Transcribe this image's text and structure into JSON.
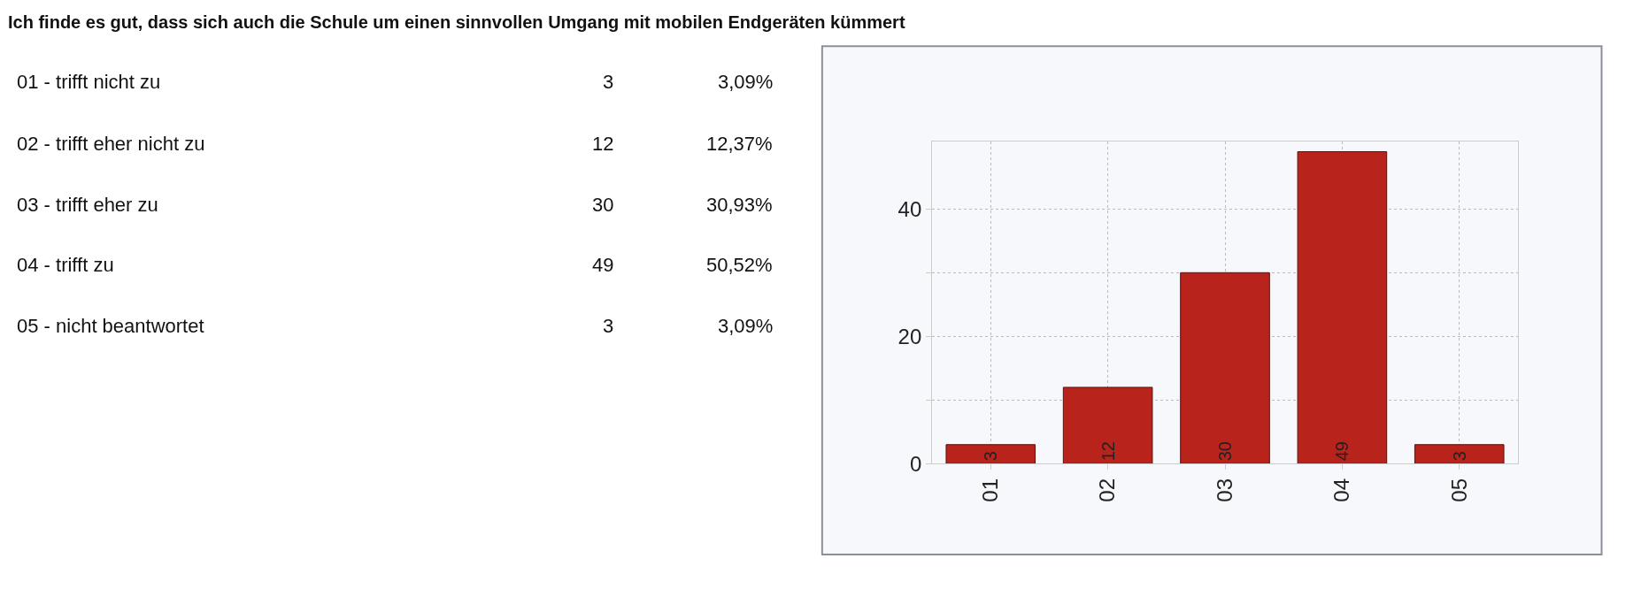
{
  "chart_data": {
    "type": "bar",
    "title": "Ich finde es gut, dass sich auch die Schule um einen sinnvollen Umgang mit mobilen Endgeräten kümmert",
    "categories": [
      "01",
      "02",
      "03",
      "04",
      "05"
    ],
    "values": [
      3,
      12,
      30,
      49,
      3
    ],
    "color": "#b8231b",
    "data_labels": true,
    "ylim": [
      0,
      50.6
    ],
    "yticks": [
      0,
      {
        "value": 10,
        "label": null
      },
      20,
      {
        "value": 30,
        "label": null
      },
      40
    ],
    "grid": true,
    "annotations": [
      "01 - trifft nicht zu",
      "3",
      "3,09%",
      "02 - trifft eher nicht zu",
      "12",
      "12,37%",
      "03 - trifft eher zu",
      "30",
      "30,93%",
      "04 - trifft zu",
      "49",
      "50,52%",
      "05 - nicht beantwortet",
      "3",
      "3,09%"
    ]
  }
}
